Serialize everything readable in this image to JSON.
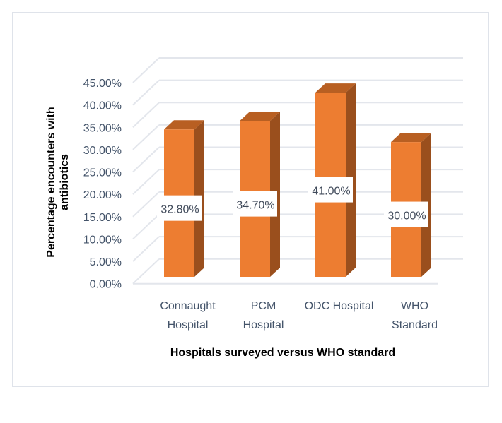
{
  "chart_data": {
    "type": "bar",
    "style": "3d-column",
    "title": "",
    "xlabel": "Hospitals  surveyed versus WHO standard",
    "ylabel_lines": [
      "Percentage encounters with",
      "antibiotics"
    ],
    "categories": [
      [
        "Connaught",
        "Hospital"
      ],
      [
        "PCM",
        "Hospital"
      ],
      [
        "ODC Hospital"
      ],
      [
        "WHO",
        "Standard"
      ]
    ],
    "values": [
      32.8,
      34.7,
      41.0,
      30.0
    ],
    "data_labels": [
      "32.80%",
      "34.70%",
      "41.00%",
      "30.00%"
    ],
    "ylim": [
      0,
      45
    ],
    "yticks": [
      "0.00%",
      "5.00%",
      "10.00%",
      "15.00%",
      "20.00%",
      "25.00%",
      "30.00%",
      "35.00%",
      "40.00%",
      "45.00%"
    ],
    "grid": true,
    "legend": "none",
    "colors": {
      "bar_front": "#ed7d31",
      "bar_top": "#b85f22",
      "bar_side": "#9a4f1d",
      "grid": "#e3e6ec"
    }
  }
}
